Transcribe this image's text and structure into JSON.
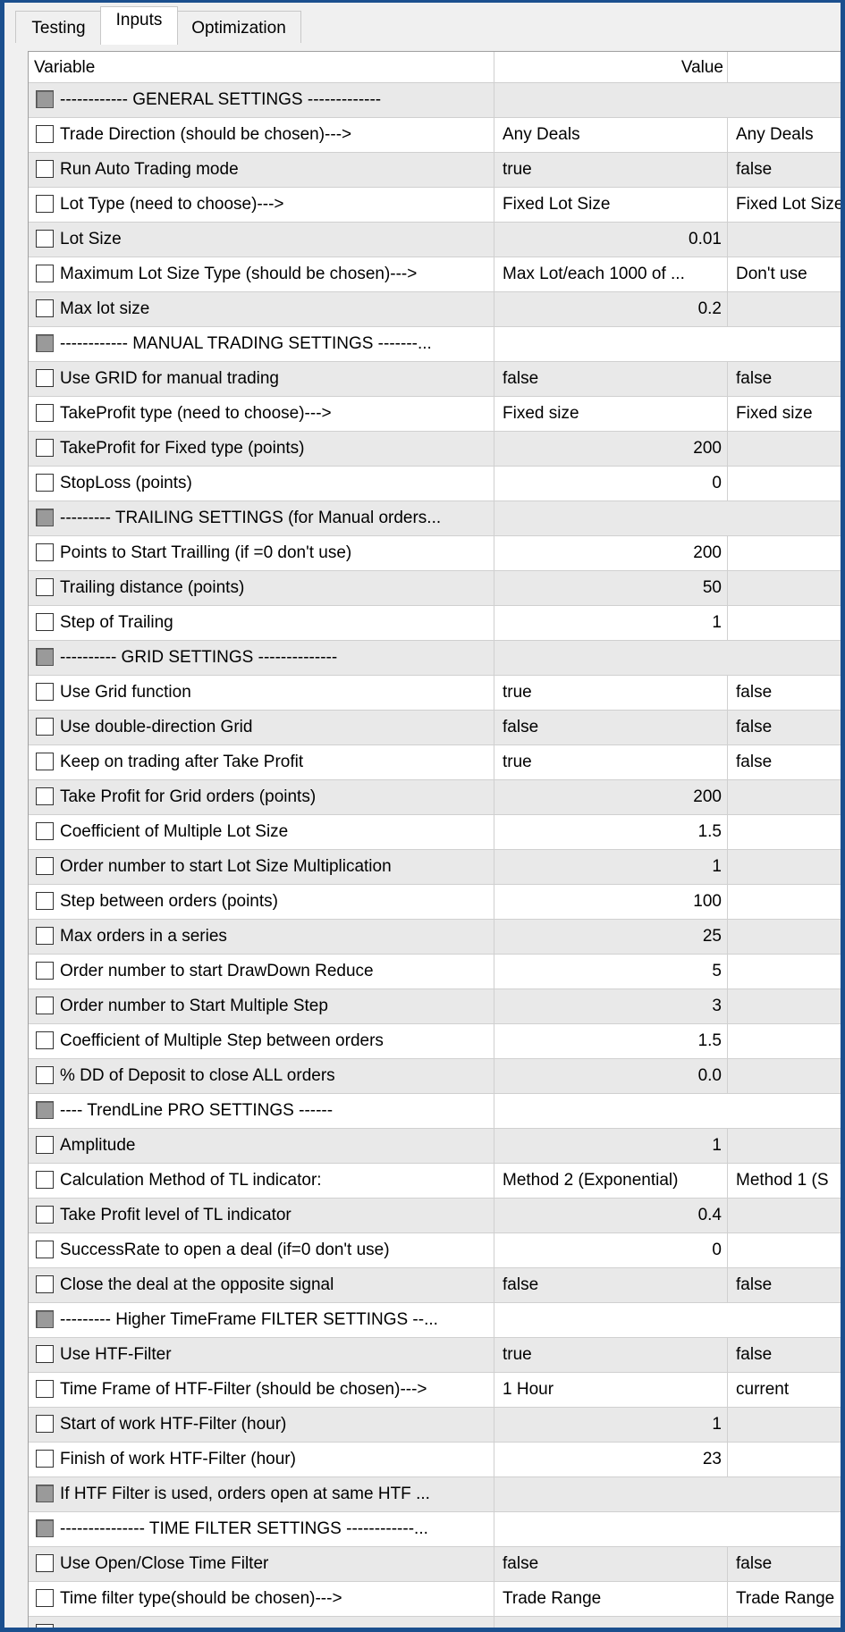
{
  "tabs": {
    "items": [
      "Testing",
      "Inputs",
      "Optimization"
    ],
    "active": 1
  },
  "table": {
    "columns": [
      "Variable",
      "Value"
    ],
    "rows": [
      {
        "label": "------------  GENERAL SETTINGS  -------------",
        "header": true
      },
      {
        "label": "Trade Direction (should be chosen)--->",
        "value": "Any Deals",
        "alt": "Any Deals"
      },
      {
        "label": "Run Auto Trading mode",
        "value": "true",
        "alt": "false"
      },
      {
        "label": "Lot Type (need to choose)--->",
        "value": "Fixed Lot Size",
        "alt": "Fixed Lot Size"
      },
      {
        "label": "Lot Size",
        "value": "0.01",
        "numeric": true
      },
      {
        "label": "Maximum Lot Size Type (should be chosen)--->",
        "value": "Max Lot/each 1000 of ...",
        "alt": "Don't use"
      },
      {
        "label": "Max lot size",
        "value": "0.2",
        "numeric": true
      },
      {
        "label": "------------  MANUAL TRADING SETTINGS  -------...",
        "header": true
      },
      {
        "label": "Use GRID for manual trading",
        "value": "false",
        "alt": "false"
      },
      {
        "label": "TakeProfit type (need to choose)--->",
        "value": "Fixed size",
        "alt": "Fixed size"
      },
      {
        "label": "TakeProfit for Fixed type (points)",
        "value": "200",
        "numeric": true
      },
      {
        "label": "StopLoss (points)",
        "value": "0",
        "numeric": true
      },
      {
        "label": "--------- TRAILING SETTINGS (for Manual orders...",
        "header": true
      },
      {
        "label": "Points to Start Trailling (if =0 don't use)",
        "value": "200",
        "numeric": true
      },
      {
        "label": "Trailing distance (points)",
        "value": "50",
        "numeric": true
      },
      {
        "label": "Step of Trailing",
        "value": "1",
        "numeric": true
      },
      {
        "label": "---------- GRID SETTINGS --------------",
        "header": true
      },
      {
        "label": "Use Grid function",
        "value": "true",
        "alt": "false"
      },
      {
        "label": "Use double-direction Grid",
        "value": "false",
        "alt": "false"
      },
      {
        "label": "Keep on trading after Take Profit",
        "value": "true",
        "alt": "false"
      },
      {
        "label": "Take Profit for Grid orders (points)",
        "value": "200",
        "numeric": true
      },
      {
        "label": "Coefficient of Multiple Lot Size",
        "value": "1.5",
        "numeric": true
      },
      {
        "label": "Order number to start Lot Size Multiplication",
        "value": "1",
        "numeric": true
      },
      {
        "label": "Step between orders (points)",
        "value": "100",
        "numeric": true
      },
      {
        "label": "Max orders in a series",
        "value": "25",
        "numeric": true
      },
      {
        "label": "Order number to start DrawDown Reduce",
        "value": "5",
        "numeric": true
      },
      {
        "label": "Order number to Start Multiple Step",
        "value": "3",
        "numeric": true
      },
      {
        "label": "Coefficient of Multiple Step between orders",
        "value": "1.5",
        "numeric": true
      },
      {
        "label": "% DD of Deposit to close ALL orders",
        "value": "0.0",
        "numeric": true
      },
      {
        "label": "----  TrendLine PRO SETTINGS  ------",
        "header": true
      },
      {
        "label": "Amplitude",
        "value": "1",
        "numeric": true
      },
      {
        "label": "Calculation Method of TL indicator:",
        "value": "Method 2 (Exponential)",
        "alt": "Method 1 (S"
      },
      {
        "label": "Take Profit level of TL indicator",
        "value": "0.4",
        "numeric": true
      },
      {
        "label": "SuccessRate to open a deal (if=0 don't use)",
        "value": "0",
        "numeric": true
      },
      {
        "label": "Close the deal at the opposite signal",
        "value": "false",
        "alt": "false"
      },
      {
        "label": "--------- Higher TimeFrame FILTER SETTINGS --...",
        "header": true
      },
      {
        "label": "Use HTF-Filter",
        "value": "true",
        "alt": "false"
      },
      {
        "label": "Time Frame of HTF-Filter (should be chosen)--->",
        "value": "1 Hour",
        "alt": "current"
      },
      {
        "label": "Start of work  HTF-Filter (hour)",
        "value": "1",
        "numeric": true
      },
      {
        "label": "Finish of work HTF-Filter (hour)",
        "value": "23",
        "numeric": true
      },
      {
        "label": "If HTF Filter is used, orders open at same HTF ...",
        "header": true
      },
      {
        "label": "---------------  TIME FILTER SETTINGS  ------------...",
        "header": true
      },
      {
        "label": "Use Open/Close Time Filter",
        "value": "false",
        "alt": "false"
      },
      {
        "label": "Time filter type(should be chosen)--->",
        "value": "Trade Range",
        "alt": "Trade Range"
      }
    ]
  }
}
